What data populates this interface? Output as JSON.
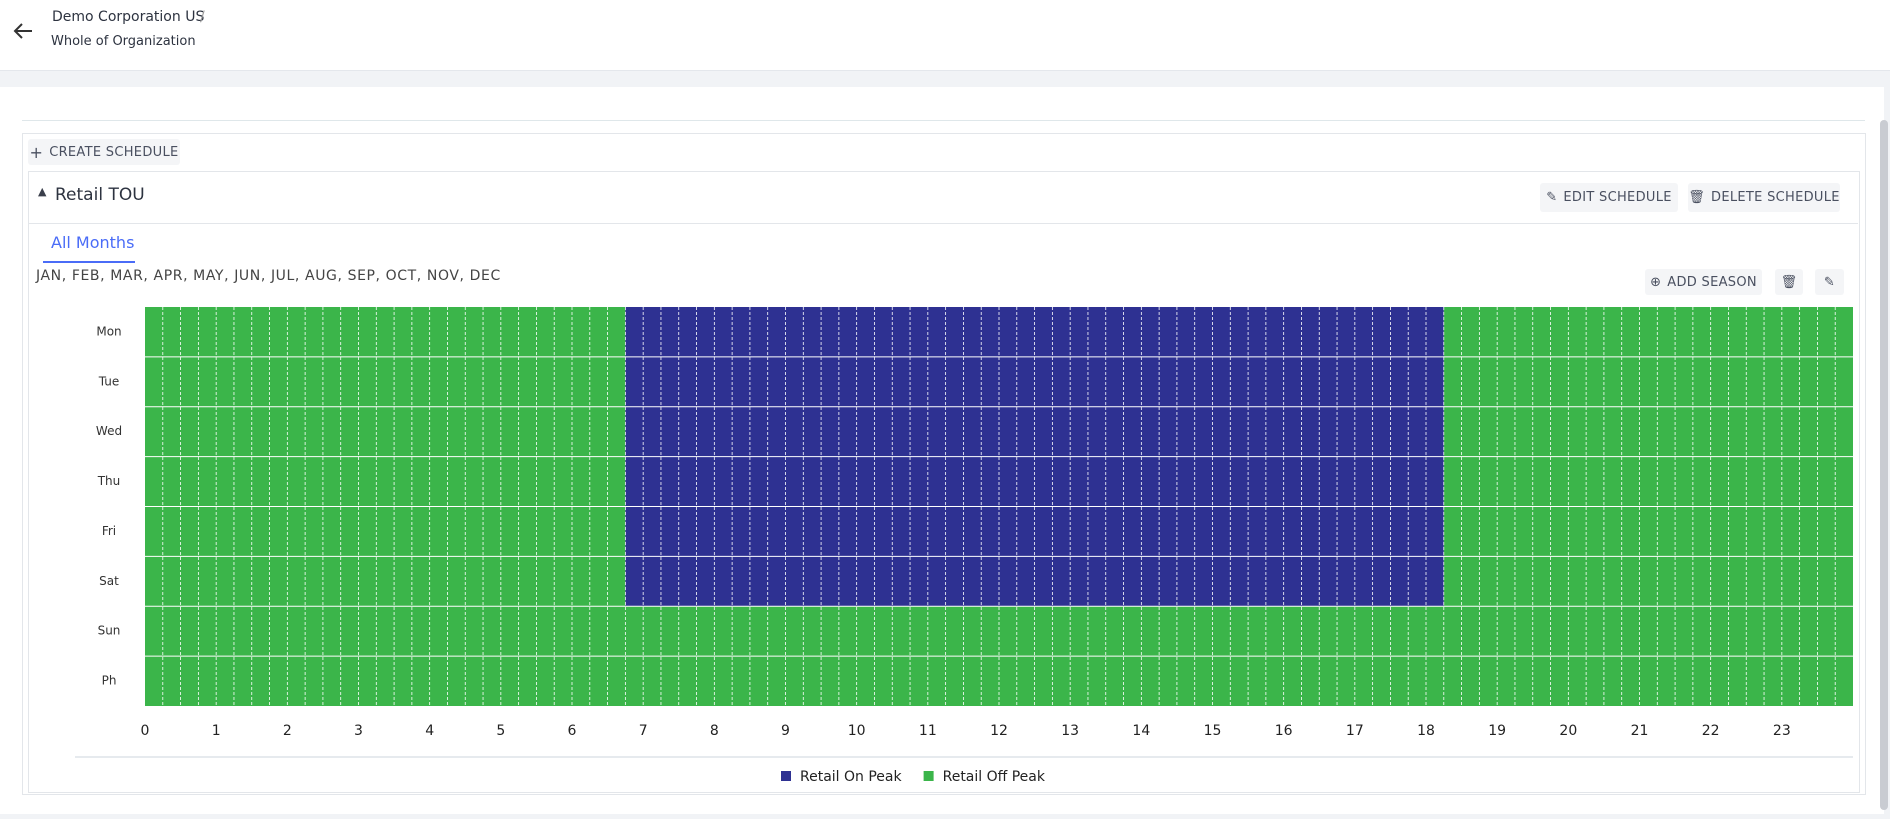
{
  "header": {
    "breadcrumb": "Demo Corporation US",
    "separator": "/",
    "title": "Whole of Organization"
  },
  "actions": {
    "create": "CREATE SCHEDULE"
  },
  "schedule": {
    "name": "Retail TOU",
    "edit": "EDIT SCHEDULE",
    "delete": "DELETE SCHEDULE",
    "tab": "All Months",
    "months": "JAN, FEB, MAR, APR, MAY, JUN, JUL, AUG, SEP, OCT, NOV, DEC",
    "add_season": "ADD SEASON"
  },
  "chart_data": {
    "type": "heatmap",
    "categories": [
      "Mon",
      "Tue",
      "Wed",
      "Thu",
      "Fri",
      "Sat",
      "Sun",
      "Ph"
    ],
    "xlim": [
      0,
      24
    ],
    "xticks": [
      0,
      1,
      2,
      3,
      4,
      5,
      6,
      7,
      8,
      9,
      10,
      11,
      12,
      13,
      14,
      15,
      16,
      17,
      18,
      19,
      20,
      21,
      22,
      23
    ],
    "slots_per_hour": 4,
    "series": [
      {
        "name": "Retail On Peak",
        "color": "#2e3192",
        "start": [
          6.75,
          6.75,
          6.75,
          6.75,
          6.75,
          6.75,
          null,
          null
        ],
        "end": [
          18.25,
          18.25,
          18.25,
          18.25,
          18.25,
          18.25,
          null,
          null
        ]
      },
      {
        "name": "Retail Off Peak",
        "color": "#3bb54a"
      }
    ]
  }
}
